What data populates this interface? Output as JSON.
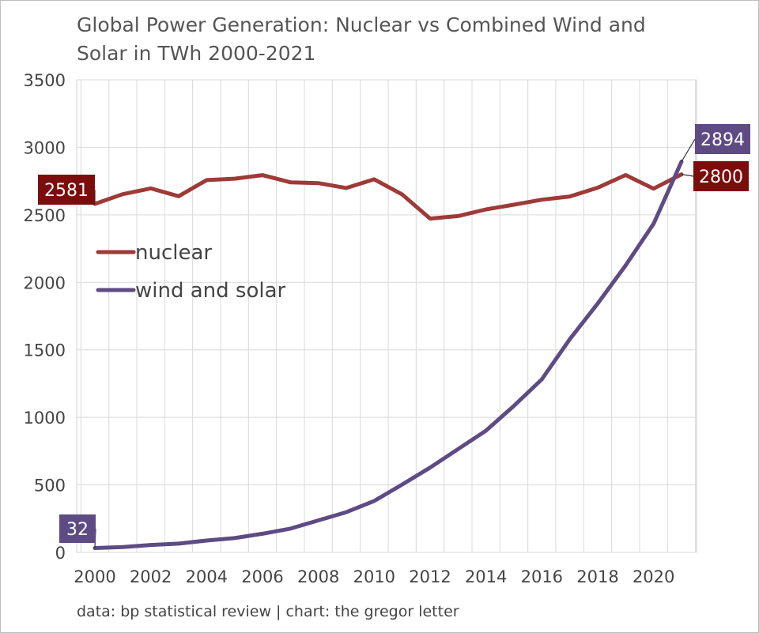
{
  "chart_data": {
    "type": "line",
    "title_lines": [
      "Global Power Generation: Nuclear vs Combined Wind and",
      "Solar in TWh 2000-2021"
    ],
    "xlabel": "",
    "ylabel": "",
    "x": [
      2000,
      2001,
      2002,
      2003,
      2004,
      2005,
      2006,
      2007,
      2008,
      2009,
      2010,
      2011,
      2012,
      2013,
      2014,
      2015,
      2016,
      2017,
      2018,
      2019,
      2020,
      2021
    ],
    "x_tick_labels": [
      "2000",
      "2002",
      "2004",
      "2006",
      "2008",
      "2010",
      "2012",
      "2014",
      "2016",
      "2018",
      "2020"
    ],
    "ylim": [
      0,
      3500
    ],
    "y_ticks": [
      0,
      500,
      1000,
      1500,
      2000,
      2500,
      3000,
      3500
    ],
    "grid": true,
    "legend_placement": "left-middle",
    "series": [
      {
        "name": "nuclear",
        "color": "#9e3a37",
        "values": [
          2581,
          2653,
          2696,
          2638,
          2757,
          2768,
          2794,
          2741,
          2735,
          2699,
          2763,
          2651,
          2472,
          2491,
          2540,
          2575,
          2612,
          2636,
          2701,
          2795,
          2694,
          2800
        ]
      },
      {
        "name": "wind and solar",
        "color": "#5e4b84",
        "values": [
          32,
          40,
          55,
          65,
          88,
          106,
          138,
          176,
          237,
          298,
          381,
          503,
          628,
          765,
          902,
          1085,
          1282,
          1579,
          1843,
          2125,
          2434,
          2894
        ]
      }
    ],
    "annotations": [
      {
        "label": "2581",
        "series": "nuclear",
        "color": "#7b0d0c"
      },
      {
        "label": "2800",
        "series": "nuclear",
        "color": "#7b0d0c"
      },
      {
        "label": "32",
        "series": "wind and solar",
        "color": "#5e4b84"
      },
      {
        "label": "2894",
        "series": "wind and solar",
        "color": "#5e4b84"
      }
    ],
    "source": "data: bp statistical review | chart: the gregor letter"
  }
}
